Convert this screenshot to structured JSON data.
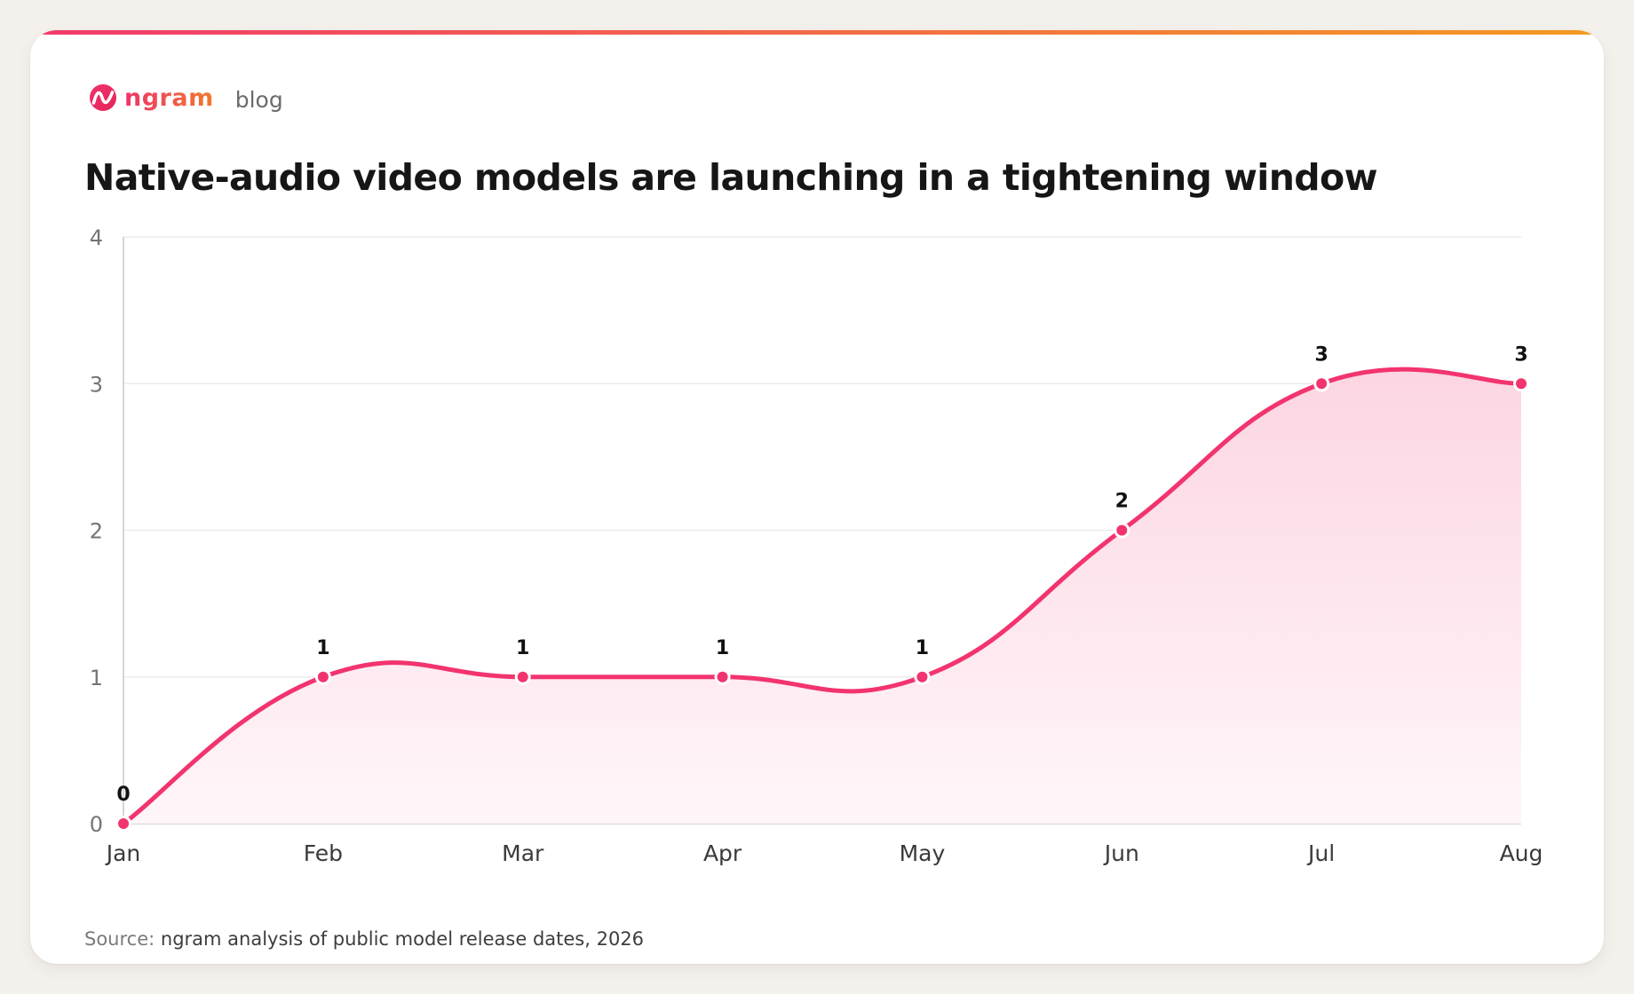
{
  "brand": {
    "name": "ngram",
    "section": "blog",
    "colors": {
      "start": "#f0336b",
      "end": "#f07a2c",
      "accent_bar_start": "#f23a6d",
      "accent_bar_end": "#f39a20"
    },
    "logo_icon": "ngram-wave-logo-icon"
  },
  "title": "Native-audio video models are launching in a tightening window",
  "chart_data": {
    "type": "area",
    "categories": [
      "Jan",
      "Feb",
      "Mar",
      "Apr",
      "May",
      "Jun",
      "Jul",
      "Aug"
    ],
    "values": [
      0,
      1,
      1,
      1,
      1,
      2,
      3,
      3
    ],
    "data_labels": [
      "0",
      "1",
      "1",
      "1",
      "1",
      "2",
      "3",
      "3"
    ],
    "y_ticks": [
      "0",
      "1",
      "2",
      "3",
      "4"
    ],
    "ylim": [
      0,
      4
    ],
    "grid": true,
    "smooth": true,
    "legend": "none",
    "colors": {
      "line": "#f2346e",
      "fill_top": "#fcd6e2",
      "fill_bottom": "#fff6f9",
      "grid": "#ececec",
      "axis": "#d6d6d6",
      "tick_label": "#757575",
      "category_label": "#3a3a3a",
      "data_label": "#111111"
    }
  },
  "footer": {
    "label": "Source:",
    "text": "ngram analysis of public model release dates, 2026"
  }
}
